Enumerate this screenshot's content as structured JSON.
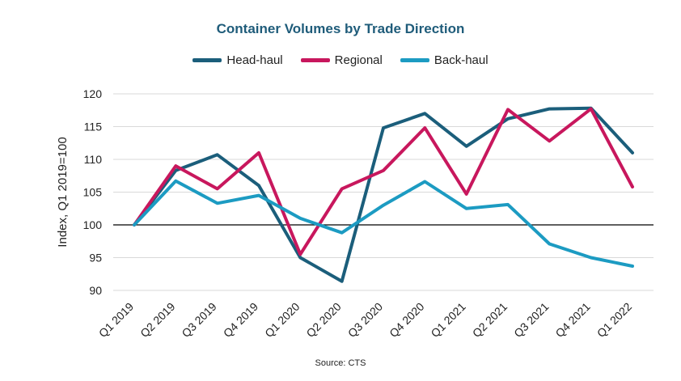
{
  "chart_data": {
    "type": "line",
    "title": "Container Volumes by Trade Direction",
    "ylabel": "Index, Q1 2019=100",
    "xlabel": "",
    "categories": [
      "Q1 2019",
      "Q2 2019",
      "Q3 2019",
      "Q4 2019",
      "Q1 2020",
      "Q2 2020",
      "Q3 2020",
      "Q4 2020",
      "Q1 2021",
      "Q2 2021",
      "Q3 2021",
      "Q4 2021",
      "Q1 2022"
    ],
    "ylim": [
      90,
      120
    ],
    "yticks": [
      90,
      95,
      100,
      105,
      110,
      115,
      120
    ],
    "reference_line": 100,
    "grid": "horizontal",
    "legend_position": "top",
    "series": [
      {
        "name": "Head-haul",
        "color": "#1b5e7b",
        "values": [
          100,
          108.3,
          110.7,
          106.0,
          95.0,
          91.4,
          114.8,
          117.0,
          112.0,
          116.2,
          117.7,
          117.8,
          111.0
        ]
      },
      {
        "name": "Regional",
        "color": "#c8175d",
        "values": [
          100,
          109.0,
          105.5,
          111.0,
          95.5,
          105.5,
          108.3,
          114.8,
          104.7,
          117.6,
          112.8,
          117.7,
          105.8
        ]
      },
      {
        "name": "Back-haul",
        "color": "#1c9bc2",
        "values": [
          100,
          106.7,
          103.3,
          104.5,
          101.0,
          98.8,
          103.0,
          106.6,
          102.5,
          103.1,
          97.1,
          95.0,
          93.7
        ]
      }
    ]
  },
  "footer": {
    "source": "Source: CTS"
  }
}
